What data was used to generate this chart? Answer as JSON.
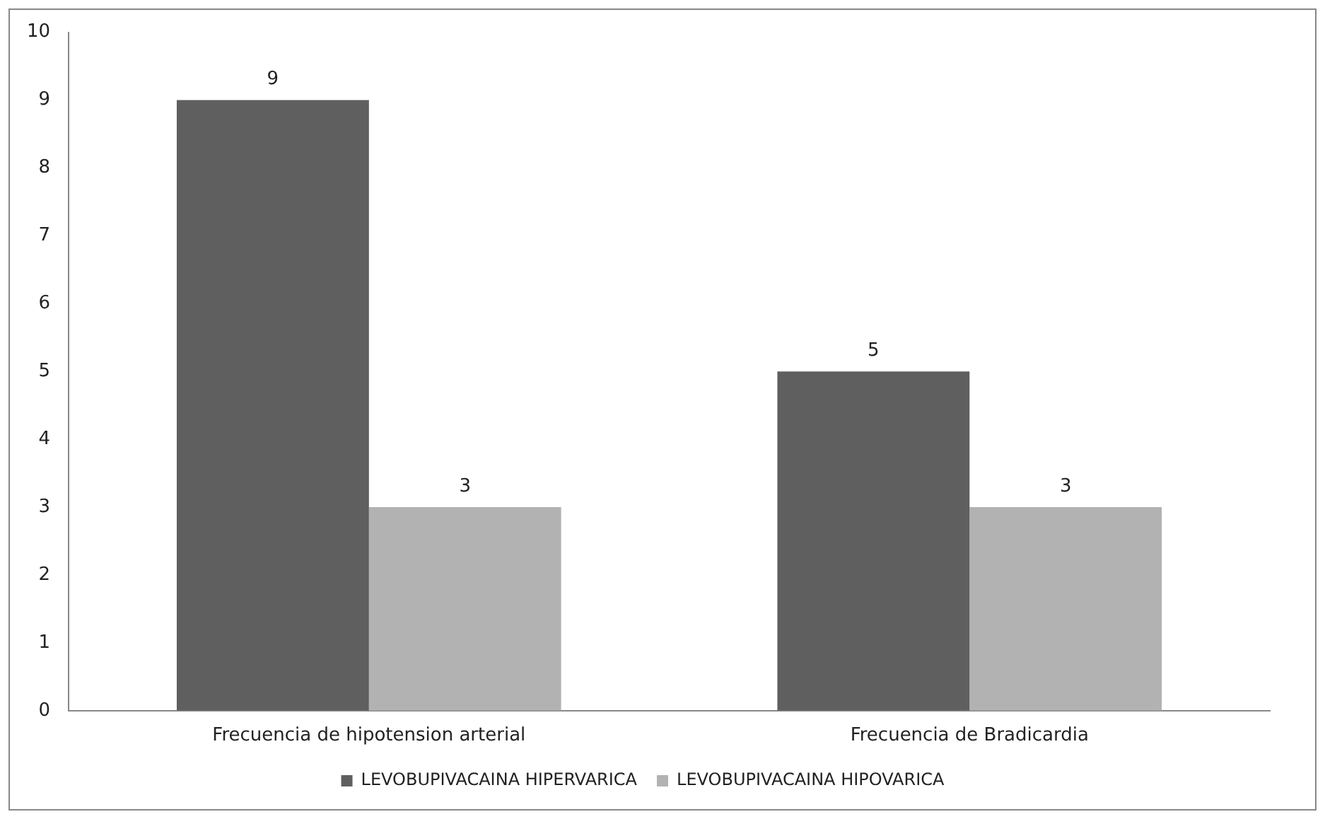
{
  "chart_data": {
    "type": "bar",
    "categories": [
      "Frecuencia de hipotension arterial",
      "Frecuencia de Bradicardia"
    ],
    "series": [
      {
        "name": "LEVOBUPIVACAINA HIPERVARICA",
        "color": "#5f5f5f",
        "values": [
          9,
          5
        ]
      },
      {
        "name": "LEVOBUPIVACAINA HIPOVARICA",
        "color": "#b2b2b2",
        "values": [
          3,
          3
        ]
      }
    ],
    "ylim": [
      0,
      10
    ],
    "yticks": [
      0,
      1,
      2,
      3,
      4,
      5,
      6,
      7,
      8,
      9,
      10
    ],
    "grid": false,
    "legend": "bottom",
    "data_labels": true
  }
}
